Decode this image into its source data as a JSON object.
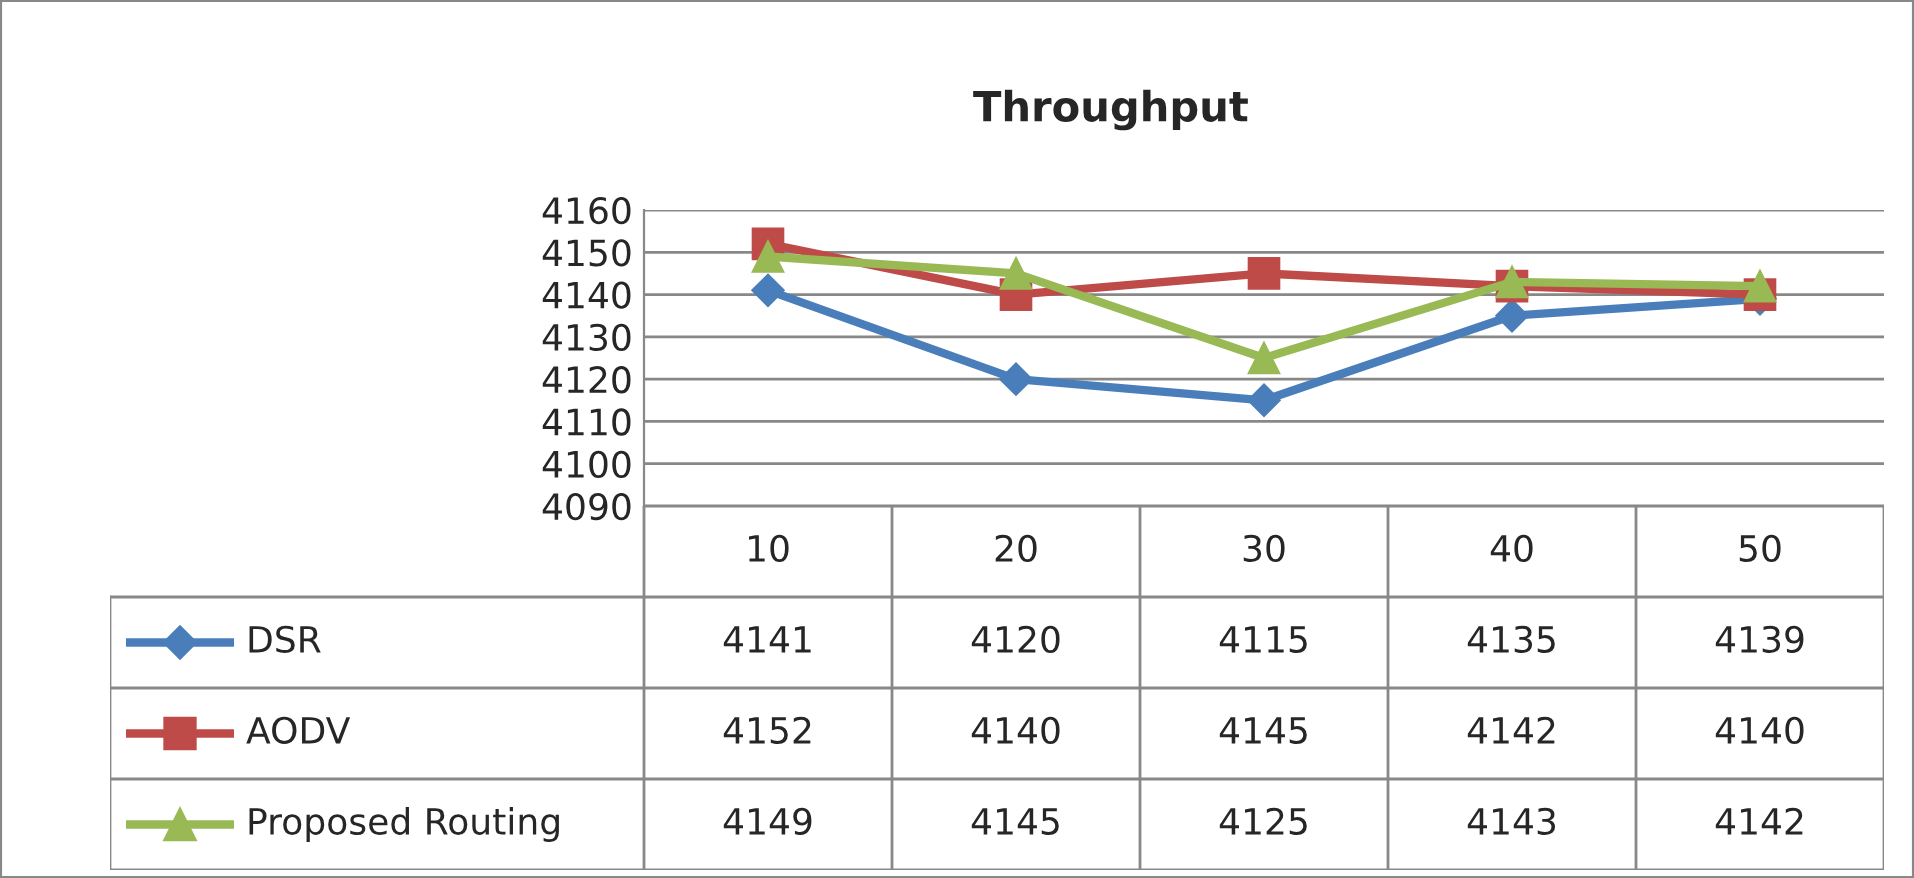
{
  "chart_data": {
    "type": "line",
    "title": "Throughput",
    "categories": [
      "10",
      "20",
      "30",
      "40",
      "50"
    ],
    "series": [
      {
        "name": "DSR",
        "color": "#4a7ebb",
        "marker": "diamond",
        "values": [
          4141,
          4120,
          4115,
          4135,
          4139
        ]
      },
      {
        "name": "AODV",
        "color": "#be4b48",
        "marker": "square",
        "values": [
          4152,
          4140,
          4145,
          4142,
          4140
        ]
      },
      {
        "name": "Proposed Routing",
        "color": "#98b954",
        "marker": "triangle",
        "values": [
          4149,
          4145,
          4125,
          4143,
          4142
        ]
      }
    ],
    "ylim": [
      4090,
      4160
    ],
    "yticks": [
      4090,
      4100,
      4110,
      4120,
      4130,
      4140,
      4150,
      4160
    ],
    "grid": "y",
    "legend": "bottom left",
    "data_labels": true,
    "line_style": "solid"
  }
}
